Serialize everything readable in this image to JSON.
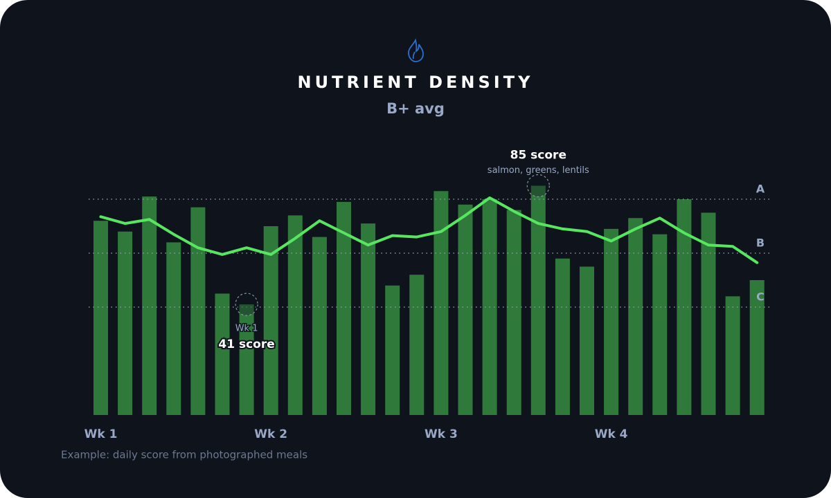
{
  "chart_data": {
    "type": "bar",
    "title": "NUTRIENT DENSITY",
    "subtitle": "B+ avg",
    "categories": [
      "Wk 1",
      null,
      null,
      null,
      null,
      null,
      null,
      "Wk 2",
      null,
      null,
      null,
      null,
      null,
      null,
      "Wk 3",
      null,
      null,
      null,
      null,
      null,
      null,
      "Wk 4",
      null,
      null,
      null,
      null,
      null,
      null
    ],
    "series": [
      {
        "type": "bar",
        "color": "#2f7a3b",
        "values": [
          72,
          68,
          81,
          64,
          77,
          45,
          41,
          70,
          74,
          66,
          79,
          71,
          48,
          52,
          83,
          78,
          80,
          76,
          85,
          58,
          55,
          69,
          73,
          67,
          80,
          75,
          44,
          50
        ]
      },
      {
        "type": "line",
        "color": "#57e65f",
        "values": [
          73.5,
          71,
          72.5,
          67,
          62,
          59.5,
          62,
          59.5,
          65.5,
          72,
          67.5,
          63,
          66.5,
          66,
          68,
          74,
          80.5,
          75.5,
          71,
          69,
          68,
          64.5,
          69,
          73,
          67.5,
          63,
          62.5,
          56.5
        ]
      }
    ],
    "ylim": [
      0,
      100
    ],
    "yticks": [
      {
        "value": 40,
        "label": "C"
      },
      {
        "value": 60,
        "label": "B"
      },
      {
        "value": 80,
        "label": "A"
      }
    ],
    "grid": true,
    "annotations": [
      {
        "text": "85 score",
        "note": "salmon, greens, lentils"
      },
      {
        "label": "Wk 1",
        "text": "41 score"
      }
    ],
    "footnote": "Example: daily score from photographed meals"
  }
}
